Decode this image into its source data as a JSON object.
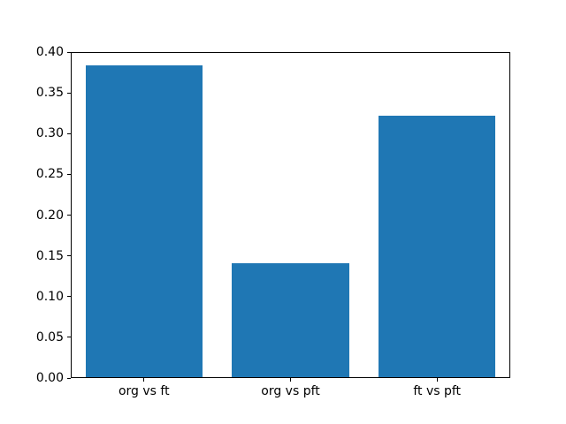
{
  "chart_data": {
    "type": "bar",
    "title": "",
    "xlabel": "",
    "ylabel": "",
    "categories": [
      "org vs ft",
      "org vs pft",
      "ft vs pft"
    ],
    "values": [
      0.384,
      0.141,
      0.322
    ],
    "bar_color": "#1f77b4",
    "xlim": [
      -0.5,
      2.5
    ],
    "ylim": [
      0.0,
      0.4
    ],
    "bar_width_units": 0.8,
    "yticks": [
      0.0,
      0.05,
      0.1,
      0.15,
      0.2,
      0.25,
      0.3,
      0.35,
      0.4
    ],
    "ytick_labels": [
      "0.00",
      "0.05",
      "0.10",
      "0.15",
      "0.20",
      "0.25",
      "0.30",
      "0.35",
      "0.40"
    ],
    "ytick_decimals": 2,
    "grid": false,
    "legend": false,
    "spine_color": "#000000",
    "background_color": "#ffffff"
  }
}
